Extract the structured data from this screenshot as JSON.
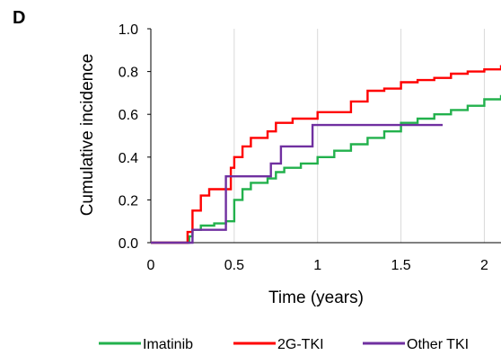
{
  "panel_label": "D",
  "colors": {
    "imatinib": "#22b14c",
    "2g_tki": "#ff0000",
    "other_tki": "#7030a0",
    "grid": "#d9d9d9",
    "axis": "#000000"
  },
  "chart_data": {
    "type": "line",
    "step": true,
    "title": "",
    "xlabel": "Time (years)",
    "ylabel": "Cumulative incidence",
    "xlim": [
      0,
      2.1
    ],
    "ylim": [
      0,
      1.0
    ],
    "x_ticks": [
      0,
      0.5,
      1,
      1.5,
      2
    ],
    "x_tick_labels": [
      "0",
      "0.5",
      "1",
      "1.5",
      "2"
    ],
    "y_ticks": [
      0,
      0.2,
      0.4,
      0.6,
      0.8,
      1.0
    ],
    "y_tick_labels": [
      "0.0",
      "0.2",
      "0.4",
      "0.6",
      "0.8",
      "1.0"
    ],
    "grid": "vertical",
    "legend_position": "bottom",
    "series": [
      {
        "name": "Imatinib",
        "color": "#22b14c",
        "points": [
          [
            0,
            0
          ],
          [
            0.22,
            0
          ],
          [
            0.23,
            0.03
          ],
          [
            0.25,
            0.06
          ],
          [
            0.3,
            0.08
          ],
          [
            0.38,
            0.09
          ],
          [
            0.45,
            0.1
          ],
          [
            0.5,
            0.2
          ],
          [
            0.55,
            0.25
          ],
          [
            0.6,
            0.28
          ],
          [
            0.7,
            0.3
          ],
          [
            0.75,
            0.33
          ],
          [
            0.8,
            0.35
          ],
          [
            0.9,
            0.37
          ],
          [
            1.0,
            0.4
          ],
          [
            1.1,
            0.43
          ],
          [
            1.2,
            0.46
          ],
          [
            1.3,
            0.49
          ],
          [
            1.4,
            0.52
          ],
          [
            1.5,
            0.56
          ],
          [
            1.6,
            0.58
          ],
          [
            1.7,
            0.6
          ],
          [
            1.8,
            0.62
          ],
          [
            1.9,
            0.64
          ],
          [
            2.0,
            0.67
          ],
          [
            2.1,
            0.69
          ]
        ]
      },
      {
        "name": "2G-TKI",
        "color": "#ff0000",
        "points": [
          [
            0,
            0
          ],
          [
            0.2,
            0
          ],
          [
            0.22,
            0.05
          ],
          [
            0.25,
            0.15
          ],
          [
            0.3,
            0.22
          ],
          [
            0.35,
            0.25
          ],
          [
            0.45,
            0.25
          ],
          [
            0.48,
            0.35
          ],
          [
            0.5,
            0.4
          ],
          [
            0.55,
            0.45
          ],
          [
            0.6,
            0.49
          ],
          [
            0.7,
            0.52
          ],
          [
            0.75,
            0.56
          ],
          [
            0.85,
            0.58
          ],
          [
            1.0,
            0.61
          ],
          [
            1.2,
            0.66
          ],
          [
            1.3,
            0.71
          ],
          [
            1.4,
            0.72
          ],
          [
            1.5,
            0.75
          ],
          [
            1.6,
            0.76
          ],
          [
            1.7,
            0.77
          ],
          [
            1.8,
            0.79
          ],
          [
            1.9,
            0.8
          ],
          [
            2.0,
            0.81
          ],
          [
            2.1,
            0.83
          ]
        ]
      },
      {
        "name": "Other TKI",
        "color": "#7030a0",
        "points": [
          [
            0,
            0
          ],
          [
            0.25,
            0
          ],
          [
            0.25,
            0.06
          ],
          [
            0.45,
            0.06
          ],
          [
            0.45,
            0.31
          ],
          [
            0.72,
            0.31
          ],
          [
            0.72,
            0.37
          ],
          [
            0.78,
            0.37
          ],
          [
            0.78,
            0.45
          ],
          [
            0.97,
            0.45
          ],
          [
            0.97,
            0.55
          ],
          [
            1.75,
            0.55
          ]
        ]
      }
    ]
  }
}
